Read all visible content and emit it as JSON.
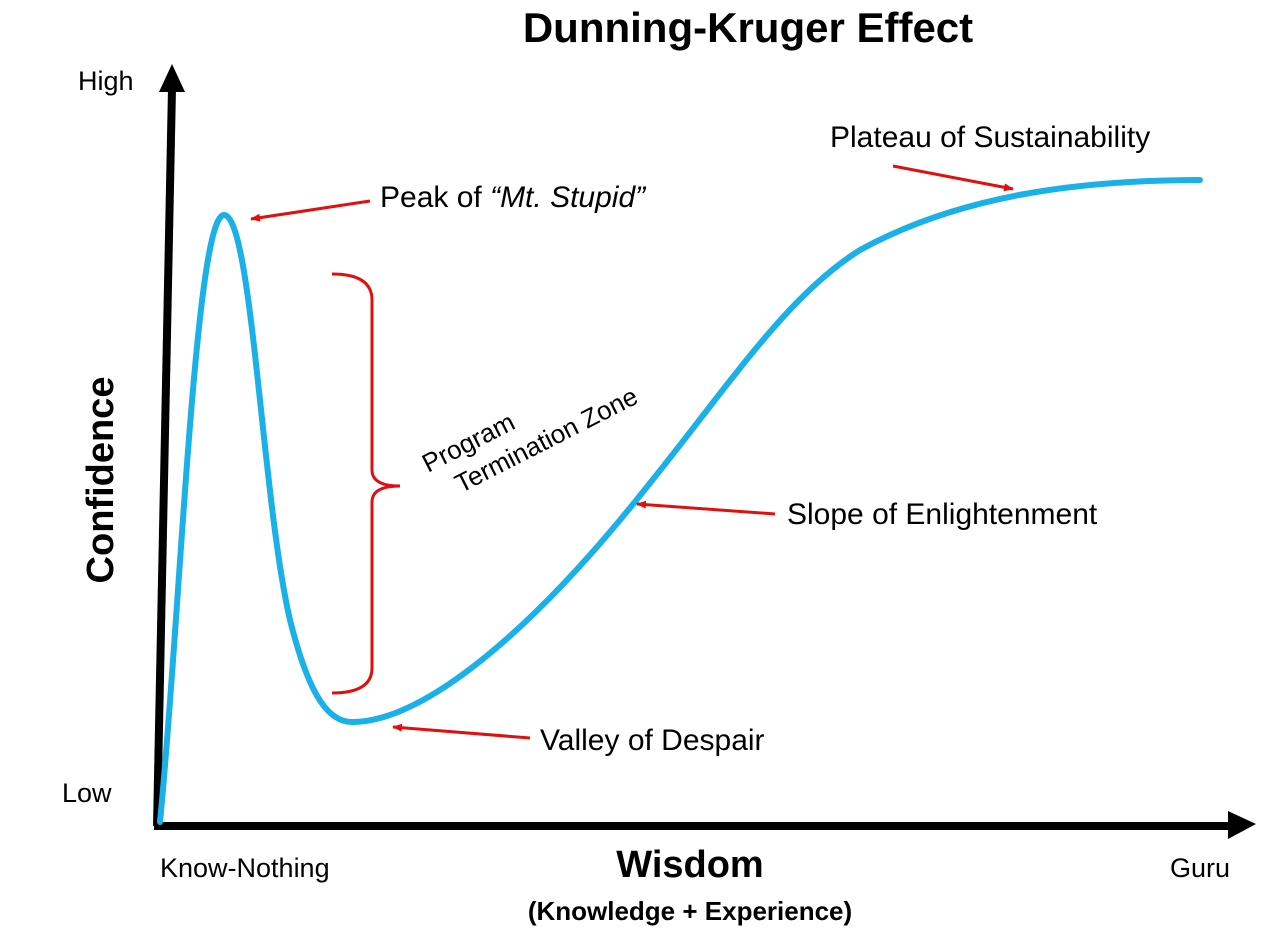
{
  "title": "Dunning-Kruger Effect",
  "y_axis": {
    "label": "Confidence",
    "high": "High",
    "low": "Low"
  },
  "x_axis": {
    "label": "Wisdom",
    "sublabel": "(Knowledge + Experience)",
    "start": "Know-Nothing",
    "end": "Guru"
  },
  "annotations": {
    "peak_prefix": "Peak of ",
    "peak_italic": "“Mt. Stupid”",
    "zone_line1": "Program",
    "zone_line2": "Termination Zone",
    "valley": "Valley of Despair",
    "slope": "Slope of Enlightenment",
    "plateau": "Plateau of Sustainability"
  },
  "colors": {
    "curve": "#1ab0e8",
    "annotation": "#e01010",
    "axis": "#000000"
  }
}
